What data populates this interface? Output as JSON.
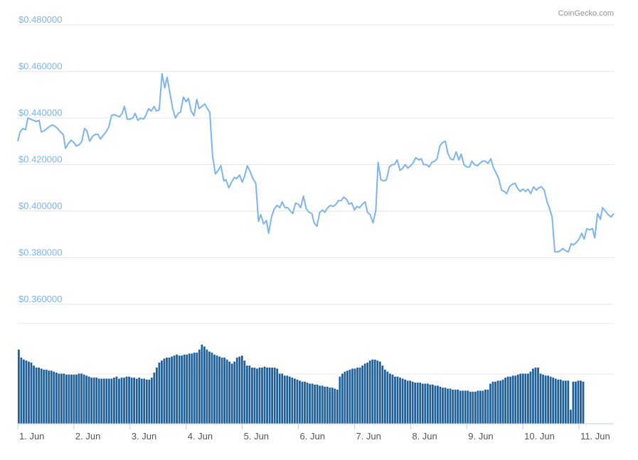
{
  "credit": "CoinGecko.com",
  "colors": {
    "price_line": "#7cb5ec",
    "volume_bar": "#1f5f97",
    "grid": "#e6e6e6",
    "axis_text": "#7cb5ec"
  },
  "chart_data": {
    "type": "line",
    "title": "",
    "xlabel": "",
    "ylabel": "",
    "x_ticks": [
      "1. Jun",
      "2. Jun",
      "3. Jun",
      "4. Jun",
      "5. Jun",
      "6. Jun",
      "7. Jun",
      "8. Jun",
      "9. Jun",
      "10. Jun",
      "11. Jun"
    ],
    "y_ticks": [
      "$0.480000",
      "$0.460000",
      "$0.440000",
      "$0.420000",
      "$0.400000",
      "$0.380000",
      "$0.360000"
    ],
    "ylim": [
      0.36,
      0.48
    ],
    "xlim": [
      0.0,
      10.62
    ],
    "grid": true,
    "legend": "none",
    "price_series": [
      [
        0.0,
        0.43
      ],
      [
        0.04,
        0.434
      ],
      [
        0.09,
        0.4355
      ],
      [
        0.14,
        0.435
      ],
      [
        0.18,
        0.44
      ],
      [
        0.23,
        0.4395
      ],
      [
        0.28,
        0.439
      ],
      [
        0.33,
        0.4385
      ],
      [
        0.38,
        0.439
      ],
      [
        0.42,
        0.434
      ],
      [
        0.47,
        0.4345
      ],
      [
        0.52,
        0.4355
      ],
      [
        0.57,
        0.4365
      ],
      [
        0.62,
        0.437
      ],
      [
        0.66,
        0.4365
      ],
      [
        0.71,
        0.4355
      ],
      [
        0.76,
        0.434
      ],
      [
        0.81,
        0.433
      ],
      [
        0.85,
        0.427
      ],
      [
        0.9,
        0.429
      ],
      [
        0.95,
        0.4305
      ],
      [
        1.0,
        0.4295
      ],
      [
        1.04,
        0.428
      ],
      [
        1.09,
        0.4285
      ],
      [
        1.14,
        0.43
      ],
      [
        1.19,
        0.4355
      ],
      [
        1.23,
        0.4345
      ],
      [
        1.28,
        0.43
      ],
      [
        1.33,
        0.432
      ],
      [
        1.38,
        0.433
      ],
      [
        1.43,
        0.433
      ],
      [
        1.47,
        0.431
      ],
      [
        1.52,
        0.4325
      ],
      [
        1.57,
        0.434
      ],
      [
        1.62,
        0.436
      ],
      [
        1.67,
        0.441
      ],
      [
        1.71,
        0.4415
      ],
      [
        1.76,
        0.441
      ],
      [
        1.81,
        0.4405
      ],
      [
        1.86,
        0.442
      ],
      [
        1.9,
        0.445
      ],
      [
        1.95,
        0.4395
      ],
      [
        2.0,
        0.4395
      ],
      [
        2.05,
        0.44
      ],
      [
        2.09,
        0.442
      ],
      [
        2.14,
        0.439
      ],
      [
        2.19,
        0.44
      ],
      [
        2.24,
        0.4395
      ],
      [
        2.28,
        0.441
      ],
      [
        2.33,
        0.444
      ],
      [
        2.38,
        0.443
      ],
      [
        2.43,
        0.445
      ],
      [
        2.47,
        0.443
      ],
      [
        2.52,
        0.4435
      ],
      [
        2.57,
        0.459
      ],
      [
        2.62,
        0.453
      ],
      [
        2.66,
        0.4575
      ],
      [
        2.71,
        0.451
      ],
      [
        2.76,
        0.444
      ],
      [
        2.81,
        0.44
      ],
      [
        2.86,
        0.442
      ],
      [
        2.9,
        0.4425
      ],
      [
        2.95,
        0.449
      ],
      [
        3.0,
        0.447
      ],
      [
        3.04,
        0.4485
      ],
      [
        3.09,
        0.443
      ],
      [
        3.14,
        0.441
      ],
      [
        3.19,
        0.448
      ],
      [
        3.23,
        0.444
      ],
      [
        3.28,
        0.445
      ],
      [
        3.33,
        0.446
      ],
      [
        3.38,
        0.444
      ],
      [
        3.42,
        0.4425
      ],
      [
        3.47,
        0.424
      ],
      [
        3.52,
        0.416
      ],
      [
        3.57,
        0.4175
      ],
      [
        3.62,
        0.4195
      ],
      [
        3.67,
        0.413
      ],
      [
        3.71,
        0.4135
      ],
      [
        3.76,
        0.41
      ],
      [
        3.81,
        0.4125
      ],
      [
        3.86,
        0.4145
      ],
      [
        3.9,
        0.414
      ],
      [
        3.95,
        0.4155
      ],
      [
        4.0,
        0.4125
      ],
      [
        4.04,
        0.415
      ],
      [
        4.09,
        0.4195
      ],
      [
        4.14,
        0.417
      ],
      [
        4.19,
        0.414
      ],
      [
        4.24,
        0.412
      ],
      [
        4.29,
        0.3955
      ],
      [
        4.33,
        0.3985
      ],
      [
        4.38,
        0.3945
      ],
      [
        4.43,
        0.396
      ],
      [
        4.47,
        0.3905
      ],
      [
        4.52,
        0.3975
      ],
      [
        4.57,
        0.401
      ],
      [
        4.62,
        0.4025
      ],
      [
        4.67,
        0.4015
      ],
      [
        4.71,
        0.404
      ],
      [
        4.76,
        0.4015
      ],
      [
        4.81,
        0.4015
      ],
      [
        4.86,
        0.4
      ],
      [
        4.9,
        0.399
      ],
      [
        4.95,
        0.4035
      ],
      [
        5.0,
        0.403
      ],
      [
        5.04,
        0.4015
      ],
      [
        5.09,
        0.4065
      ],
      [
        5.14,
        0.401
      ],
      [
        5.19,
        0.3995
      ],
      [
        5.24,
        0.399
      ],
      [
        5.28,
        0.395
      ],
      [
        5.33,
        0.3935
      ],
      [
        5.38,
        0.3995
      ],
      [
        5.43,
        0.4005
      ],
      [
        5.47,
        0.3995
      ],
      [
        5.52,
        0.4015
      ],
      [
        5.57,
        0.4025
      ],
      [
        5.62,
        0.402
      ],
      [
        5.67,
        0.403
      ],
      [
        5.71,
        0.4045
      ],
      [
        5.76,
        0.4045
      ],
      [
        5.81,
        0.406
      ],
      [
        5.86,
        0.405
      ],
      [
        5.9,
        0.403
      ],
      [
        5.95,
        0.4035
      ],
      [
        6.0,
        0.4005
      ],
      [
        6.04,
        0.402
      ],
      [
        6.09,
        0.4015
      ],
      [
        6.14,
        0.403
      ],
      [
        6.19,
        0.404
      ],
      [
        6.23,
        0.3995
      ],
      [
        6.28,
        0.3985
      ],
      [
        6.33,
        0.395
      ],
      [
        6.38,
        0.4005
      ],
      [
        6.42,
        0.421
      ],
      [
        6.47,
        0.4135
      ],
      [
        6.52,
        0.413
      ],
      [
        6.57,
        0.4135
      ],
      [
        6.62,
        0.419
      ],
      [
        6.67,
        0.42
      ],
      [
        6.71,
        0.42
      ],
      [
        6.76,
        0.422
      ],
      [
        6.81,
        0.4175
      ],
      [
        6.86,
        0.4185
      ],
      [
        6.9,
        0.42
      ],
      [
        6.95,
        0.4185
      ],
      [
        7.0,
        0.4195
      ],
      [
        7.05,
        0.421
      ],
      [
        7.09,
        0.423
      ],
      [
        7.14,
        0.422
      ],
      [
        7.19,
        0.4225
      ],
      [
        7.23,
        0.42
      ],
      [
        7.28,
        0.42
      ],
      [
        7.33,
        0.419
      ],
      [
        7.38,
        0.421
      ],
      [
        7.43,
        0.4215
      ],
      [
        7.47,
        0.4225
      ],
      [
        7.52,
        0.428
      ],
      [
        7.57,
        0.4295
      ],
      [
        7.62,
        0.43
      ],
      [
        7.66,
        0.425
      ],
      [
        7.71,
        0.4225
      ],
      [
        7.76,
        0.422
      ],
      [
        7.81,
        0.4255
      ],
      [
        7.86,
        0.422
      ],
      [
        7.9,
        0.4245
      ],
      [
        7.95,
        0.42
      ],
      [
        8.0,
        0.419
      ],
      [
        8.05,
        0.419
      ],
      [
        8.09,
        0.4215
      ],
      [
        8.14,
        0.42
      ],
      [
        8.19,
        0.4195
      ],
      [
        8.23,
        0.4205
      ],
      [
        8.28,
        0.4215
      ],
      [
        8.33,
        0.4215
      ],
      [
        8.38,
        0.4205
      ],
      [
        8.43,
        0.4225
      ],
      [
        8.47,
        0.419
      ],
      [
        8.52,
        0.4165
      ],
      [
        8.57,
        0.414
      ],
      [
        8.62,
        0.409
      ],
      [
        8.67,
        0.4085
      ],
      [
        8.71,
        0.4075
      ],
      [
        8.76,
        0.4105
      ],
      [
        8.81,
        0.4115
      ],
      [
        8.86,
        0.412
      ],
      [
        8.9,
        0.41
      ],
      [
        8.95,
        0.4085
      ],
      [
        9.0,
        0.4095
      ],
      [
        9.05,
        0.4085
      ],
      [
        9.09,
        0.4095
      ],
      [
        9.14,
        0.4075
      ],
      [
        9.19,
        0.4105
      ],
      [
        9.24,
        0.409
      ],
      [
        9.28,
        0.41
      ],
      [
        9.33,
        0.4105
      ],
      [
        9.38,
        0.409
      ],
      [
        9.43,
        0.404
      ],
      [
        9.47,
        0.4015
      ],
      [
        9.52,
        0.3975
      ],
      [
        9.57,
        0.3825
      ],
      [
        9.62,
        0.3825
      ],
      [
        9.67,
        0.383
      ],
      [
        9.71,
        0.384
      ],
      [
        9.76,
        0.383
      ],
      [
        9.81,
        0.3825
      ],
      [
        9.86,
        0.386
      ],
      [
        9.9,
        0.3855
      ],
      [
        9.95,
        0.3865
      ],
      [
        10.0,
        0.388
      ],
      [
        10.05,
        0.3905
      ],
      [
        10.09,
        0.388
      ],
      [
        10.14,
        0.3925
      ],
      [
        10.19,
        0.392
      ],
      [
        10.24,
        0.3925
      ],
      [
        10.28,
        0.3885
      ],
      [
        10.33,
        0.399
      ],
      [
        10.38,
        0.3965
      ],
      [
        10.42,
        0.4015
      ],
      [
        10.47,
        0.4
      ],
      [
        10.52,
        0.3985
      ],
      [
        10.57,
        0.3975
      ],
      [
        10.62,
        0.399
      ]
    ],
    "volume_series": {
      "x_start": 0.0,
      "x_step": 0.0447,
      "scale_max": 1.0,
      "values": [
        0.74,
        0.66,
        0.64,
        0.63,
        0.62,
        0.61,
        0.58,
        0.56,
        0.56,
        0.55,
        0.54,
        0.54,
        0.53,
        0.53,
        0.52,
        0.51,
        0.5,
        0.5,
        0.5,
        0.49,
        0.49,
        0.49,
        0.49,
        0.49,
        0.5,
        0.5,
        0.49,
        0.48,
        0.47,
        0.46,
        0.46,
        0.46,
        0.45,
        0.45,
        0.45,
        0.45,
        0.45,
        0.45,
        0.46,
        0.47,
        0.45,
        0.46,
        0.46,
        0.47,
        0.47,
        0.46,
        0.46,
        0.45,
        0.46,
        0.45,
        0.45,
        0.44,
        0.44,
        0.46,
        0.51,
        0.56,
        0.61,
        0.63,
        0.65,
        0.66,
        0.66,
        0.67,
        0.68,
        0.69,
        0.68,
        0.68,
        0.69,
        0.69,
        0.7,
        0.7,
        0.71,
        0.71,
        0.74,
        0.79,
        0.77,
        0.74,
        0.72,
        0.71,
        0.69,
        0.68,
        0.67,
        0.66,
        0.66,
        0.64,
        0.62,
        0.6,
        0.62,
        0.66,
        0.67,
        0.68,
        0.63,
        0.58,
        0.58,
        0.56,
        0.56,
        0.55,
        0.56,
        0.56,
        0.57,
        0.56,
        0.56,
        0.56,
        0.56,
        0.55,
        0.5,
        0.5,
        0.48,
        0.48,
        0.47,
        0.46,
        0.45,
        0.44,
        0.43,
        0.42,
        0.42,
        0.41,
        0.4,
        0.4,
        0.39,
        0.39,
        0.38,
        0.38,
        0.37,
        0.37,
        0.36,
        0.36,
        0.35,
        0.34,
        0.47,
        0.5,
        0.52,
        0.53,
        0.54,
        0.55,
        0.55,
        0.56,
        0.56,
        0.58,
        0.6,
        0.61,
        0.63,
        0.64,
        0.64,
        0.63,
        0.62,
        0.58,
        0.54,
        0.52,
        0.5,
        0.49,
        0.47,
        0.47,
        0.46,
        0.45,
        0.44,
        0.43,
        0.43,
        0.42,
        0.41,
        0.41,
        0.41,
        0.4,
        0.4,
        0.4,
        0.39,
        0.39,
        0.38,
        0.38,
        0.37,
        0.36,
        0.36,
        0.35,
        0.35,
        0.34,
        0.34,
        0.34,
        0.33,
        0.33,
        0.33,
        0.33,
        0.32,
        0.32,
        0.32,
        0.33,
        0.33,
        0.33,
        0.34,
        0.34,
        0.4,
        0.42,
        0.42,
        0.43,
        0.43,
        0.44,
        0.46,
        0.47,
        0.47,
        0.48,
        0.48,
        0.49,
        0.5,
        0.5,
        0.5,
        0.5,
        0.52,
        0.55,
        0.56,
        0.56,
        0.5,
        0.49,
        0.48,
        0.48,
        0.47,
        0.46,
        0.45,
        0.44,
        0.44,
        0.43,
        0.43,
        0.43,
        0.14,
        0.42,
        0.42,
        0.43,
        0.43,
        0.42
      ]
    }
  }
}
